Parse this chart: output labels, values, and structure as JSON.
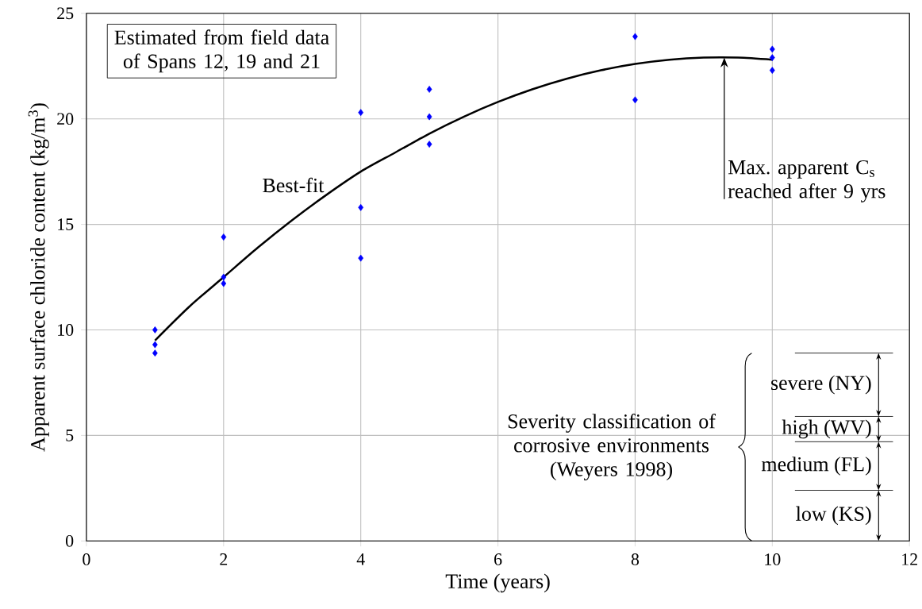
{
  "chart_data": {
    "type": "scatter",
    "xlabel": "Time (years)",
    "ylabel": "Apparent surface chloride content (kg/m$^{3}$)",
    "xlim": [
      0,
      12
    ],
    "ylim": [
      0,
      25
    ],
    "xticks": [
      0,
      2,
      4,
      6,
      8,
      10,
      12
    ],
    "yticks": [
      0,
      5,
      10,
      15,
      20,
      25
    ],
    "grid": true,
    "marker": "diamond",
    "series": [
      {
        "color": "#0000ff",
        "x": [
          1,
          1,
          1,
          2,
          2,
          2,
          4,
          4,
          4,
          5,
          5,
          5,
          8,
          8,
          10,
          10,
          10
        ],
        "values": [
          10.0,
          9.3,
          8.9,
          14.4,
          12.5,
          12.2,
          20.3,
          15.8,
          13.4,
          21.4,
          20.1,
          18.8,
          23.9,
          20.9,
          23.3,
          22.9,
          22.3
        ]
      },
      {
        "type": "line",
        "name": "Best-fit",
        "color": "#000000",
        "marker": "none",
        "x": [
          1,
          1.5,
          2,
          2.5,
          3,
          3.5,
          4,
          4.5,
          5,
          5.5,
          6,
          6.5,
          7,
          7.5,
          8,
          8.5,
          9,
          9.5,
          10
        ],
        "values": [
          9.5,
          11.1,
          12.5,
          13.9,
          15.2,
          16.4,
          17.5,
          18.4,
          19.3,
          20.1,
          20.8,
          21.4,
          21.9,
          22.3,
          22.6,
          22.8,
          22.9,
          22.9,
          22.8
        ]
      }
    ],
    "ref_lines": [
      {
        "axis": "y",
        "value": 2.4
      },
      {
        "axis": "y",
        "value": 4.7
      },
      {
        "axis": "y",
        "value": 5.9
      },
      {
        "axis": "y",
        "value": 8.9
      }
    ],
    "annotations": [
      "Estimated from field data of Spans 12, 19 and 21",
      {
        "text": "Max. apparent C$_{s}$ reached after 9 yrs",
        "x": 9.3,
        "y": 22.9
      },
      "Severity classification of corrosive environments (Weyers 1998)",
      "low (KS)",
      "medium (FL)",
      "high (WV)",
      "severe (NY)"
    ]
  }
}
